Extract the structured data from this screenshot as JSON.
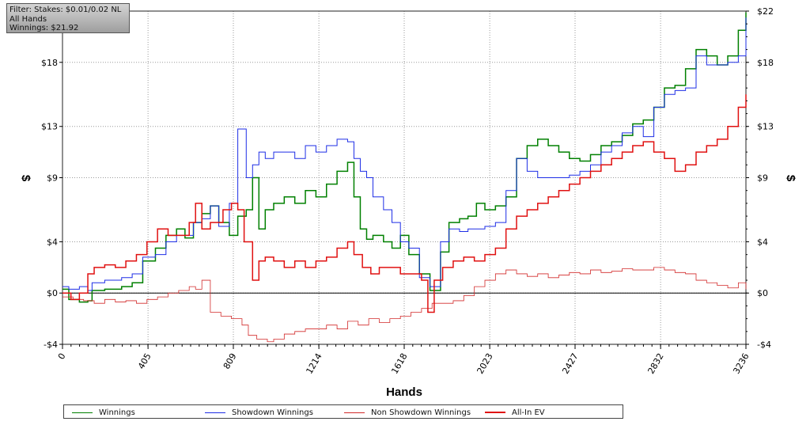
{
  "info": {
    "filter": "Filter: Stakes: $0.01/0.02 NL",
    "hands": "All Hands",
    "winnings": "Winnings: $21.92"
  },
  "chart_data": {
    "type": "line",
    "xlabel": "Hands",
    "ylabel": "$",
    "xlim": [
      0,
      3236
    ],
    "ylim": [
      -4,
      22
    ],
    "x_ticks": [
      "0",
      "405",
      "809",
      "1214",
      "1618",
      "2023",
      "2427",
      "2832",
      "3236"
    ],
    "y_ticks": [
      {
        "value": -4,
        "label": "-$4"
      },
      {
        "value": 0,
        "label": "$0"
      },
      {
        "value": 4,
        "label": "$4"
      },
      {
        "value": 9,
        "label": "$9"
      },
      {
        "value": 13,
        "label": "$13"
      },
      {
        "value": 18,
        "label": "$18"
      },
      {
        "value": 22,
        "label": "$22"
      }
    ],
    "grid": true,
    "legend_position": "bottom",
    "series": [
      {
        "name": "Winnings",
        "color": "#008000",
        "x": [
          0,
          30,
          80,
          120,
          140,
          200,
          280,
          330,
          380,
          440,
          490,
          540,
          580,
          620,
          660,
          700,
          740,
          790,
          830,
          870,
          900,
          930,
          960,
          1000,
          1050,
          1100,
          1150,
          1200,
          1250,
          1300,
          1350,
          1380,
          1410,
          1440,
          1470,
          1520,
          1560,
          1600,
          1640,
          1690,
          1740,
          1790,
          1830,
          1880,
          1920,
          1960,
          2000,
          2050,
          2100,
          2150,
          2200,
          2250,
          2300,
          2350,
          2400,
          2450,
          2500,
          2550,
          2600,
          2650,
          2700,
          2750,
          2800,
          2850,
          2900,
          2950,
          3000,
          3050,
          3100,
          3150,
          3200,
          3236
        ],
        "y": [
          0.3,
          -0.5,
          -0.7,
          -0.6,
          0.2,
          0.3,
          0.5,
          0.8,
          2.5,
          3.5,
          4.5,
          5.0,
          4.3,
          5.5,
          6.2,
          6.8,
          5.5,
          4.5,
          6.0,
          6.5,
          9.0,
          5.0,
          6.5,
          7.0,
          7.5,
          7.0,
          8.0,
          7.5,
          8.5,
          9.5,
          10.2,
          7.5,
          5.0,
          4.2,
          4.5,
          4.0,
          3.5,
          4.5,
          3.0,
          1.5,
          0.2,
          3.2,
          5.5,
          5.8,
          6.0,
          7.0,
          6.5,
          6.8,
          7.5,
          10.5,
          11.5,
          12.0,
          11.5,
          11.0,
          10.5,
          10.3,
          10.8,
          11.5,
          11.8,
          12.3,
          13.2,
          13.5,
          14.5,
          16.0,
          16.2,
          17.5,
          19.0,
          18.5,
          17.8,
          18.5,
          20.5,
          21.9
        ]
      },
      {
        "name": "Showdown Winnings",
        "color": "#1e2ee6",
        "x": [
          0,
          30,
          80,
          120,
          140,
          200,
          280,
          330,
          380,
          440,
          490,
          540,
          580,
          620,
          660,
          700,
          740,
          790,
          830,
          870,
          900,
          930,
          960,
          1000,
          1050,
          1100,
          1150,
          1200,
          1250,
          1300,
          1350,
          1380,
          1410,
          1440,
          1470,
          1520,
          1560,
          1600,
          1640,
          1690,
          1740,
          1790,
          1830,
          1880,
          1920,
          1960,
          2000,
          2050,
          2100,
          2150,
          2200,
          2250,
          2300,
          2350,
          2400,
          2450,
          2500,
          2550,
          2600,
          2650,
          2700,
          2750,
          2800,
          2850,
          2900,
          2950,
          3000,
          3050,
          3100,
          3150,
          3200,
          3236
        ],
        "y": [
          0.5,
          0.3,
          0.5,
          0.2,
          0.8,
          1.0,
          1.2,
          1.5,
          2.8,
          3.0,
          4.0,
          4.5,
          4.5,
          5.5,
          5.8,
          6.8,
          5.2,
          7.0,
          12.8,
          9.0,
          10.0,
          11.0,
          10.5,
          11.0,
          11.0,
          10.5,
          11.5,
          11.0,
          11.5,
          12.0,
          11.8,
          10.5,
          9.5,
          9.0,
          7.5,
          6.5,
          5.5,
          4.0,
          3.5,
          1.2,
          0.5,
          4.0,
          5.0,
          4.8,
          5.0,
          5.0,
          5.2,
          5.5,
          8.0,
          10.5,
          9.5,
          9.0,
          9.0,
          9.0,
          9.2,
          9.5,
          10.0,
          11.0,
          11.5,
          12.5,
          13.0,
          12.2,
          14.5,
          15.5,
          15.8,
          16.0,
          18.5,
          17.8,
          17.8,
          18.0,
          18.5,
          21.5
        ]
      },
      {
        "name": "Non Showdown Winnings",
        "color": "#d22a2a",
        "x": [
          0,
          50,
          100,
          150,
          200,
          250,
          300,
          350,
          400,
          450,
          500,
          550,
          600,
          630,
          660,
          700,
          750,
          800,
          850,
          880,
          920,
          970,
          1000,
          1050,
          1100,
          1150,
          1200,
          1250,
          1300,
          1350,
          1400,
          1450,
          1500,
          1550,
          1600,
          1650,
          1700,
          1750,
          1800,
          1850,
          1900,
          1950,
          2000,
          2050,
          2100,
          2150,
          2200,
          2250,
          2300,
          2350,
          2400,
          2450,
          2500,
          2550,
          2600,
          2650,
          2700,
          2750,
          2800,
          2850,
          2900,
          2950,
          3000,
          3050,
          3100,
          3150,
          3200,
          3236
        ],
        "y": [
          -0.3,
          -0.5,
          -0.6,
          -0.8,
          -0.5,
          -0.7,
          -0.6,
          -0.8,
          -0.5,
          -0.3,
          0.0,
          0.2,
          0.5,
          0.3,
          1.0,
          -1.5,
          -1.8,
          -2.0,
          -2.5,
          -3.3,
          -3.6,
          -3.8,
          -3.6,
          -3.2,
          -3.0,
          -2.8,
          -2.8,
          -2.5,
          -2.8,
          -2.2,
          -2.5,
          -2.0,
          -2.3,
          -2.0,
          -1.8,
          -1.5,
          -1.2,
          -0.8,
          -0.8,
          -0.6,
          -0.2,
          0.5,
          1.0,
          1.5,
          1.8,
          1.5,
          1.3,
          1.5,
          1.2,
          1.4,
          1.6,
          1.5,
          1.8,
          1.6,
          1.7,
          1.9,
          1.8,
          1.8,
          2.0,
          1.8,
          1.6,
          1.5,
          1.0,
          0.8,
          0.6,
          0.4,
          0.8,
          0.3
        ]
      },
      {
        "name": "All-In EV",
        "color": "#e01010",
        "x": [
          0,
          40,
          80,
          120,
          150,
          200,
          250,
          300,
          350,
          400,
          450,
          500,
          550,
          600,
          630,
          660,
          700,
          760,
          800,
          830,
          860,
          900,
          930,
          960,
          1000,
          1050,
          1100,
          1150,
          1200,
          1250,
          1300,
          1350,
          1380,
          1420,
          1460,
          1500,
          1550,
          1600,
          1650,
          1700,
          1730,
          1760,
          1800,
          1850,
          1900,
          1950,
          2000,
          2050,
          2100,
          2150,
          2200,
          2250,
          2300,
          2350,
          2400,
          2450,
          2500,
          2550,
          2600,
          2650,
          2700,
          2750,
          2800,
          2850,
          2900,
          2950,
          3000,
          3050,
          3100,
          3150,
          3200,
          3236
        ],
        "y": [
          0.0,
          -0.5,
          0.0,
          1.5,
          2.0,
          2.2,
          2.0,
          2.5,
          3.0,
          4.0,
          5.0,
          4.5,
          4.5,
          5.5,
          7.0,
          5.0,
          5.5,
          6.5,
          7.0,
          6.5,
          4.0,
          1.0,
          2.5,
          2.8,
          2.5,
          2.0,
          2.5,
          2.0,
          2.5,
          2.8,
          3.5,
          4.0,
          3.0,
          2.0,
          1.5,
          2.0,
          2.0,
          1.5,
          1.5,
          1.0,
          -1.5,
          1.0,
          2.0,
          2.5,
          2.8,
          2.5,
          3.0,
          3.5,
          5.0,
          6.0,
          6.5,
          7.0,
          7.5,
          8.0,
          8.5,
          9.0,
          9.5,
          10.0,
          10.5,
          11.0,
          11.5,
          11.8,
          11.0,
          10.5,
          9.5,
          10.0,
          11.0,
          11.5,
          12.0,
          13.0,
          14.5,
          15.5
        ]
      }
    ]
  }
}
